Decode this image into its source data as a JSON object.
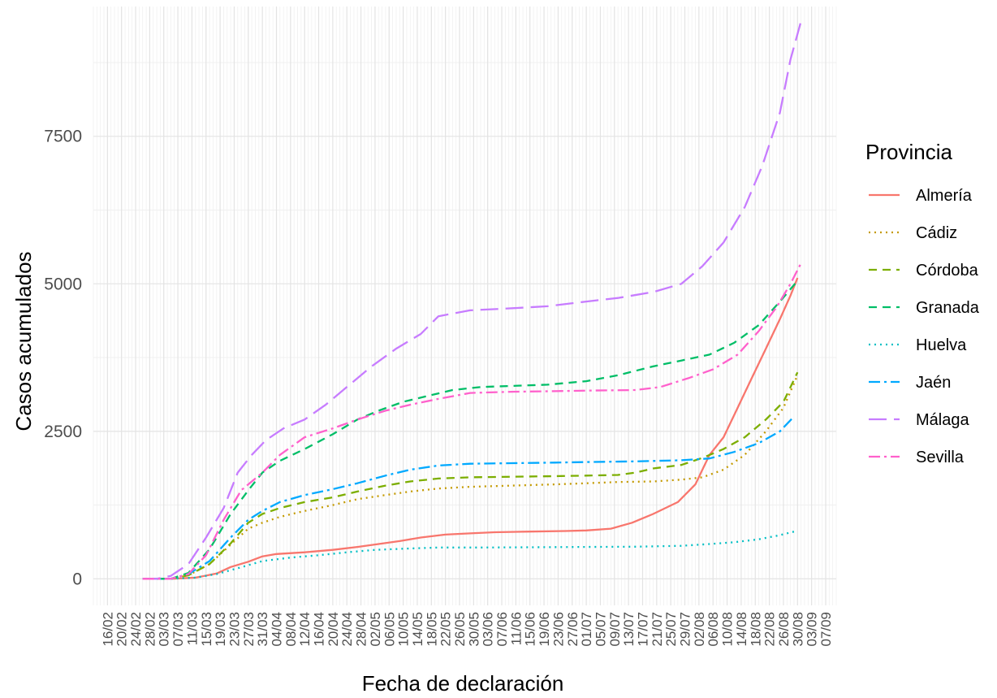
{
  "chart_data": {
    "type": "line",
    "xlabel": "Fecha de declaración",
    "ylabel": "Casos acumulados",
    "legend_title": "Provincia",
    "legend_position": "right",
    "grid": true,
    "x_start_date": "2020-02-16",
    "x_tick_labels": [
      "16/02",
      "20/02",
      "24/02",
      "28/02",
      "03/03",
      "07/03",
      "11/03",
      "15/03",
      "19/03",
      "23/03",
      "27/03",
      "31/03",
      "04/04",
      "08/04",
      "12/04",
      "16/04",
      "20/04",
      "24/04",
      "28/04",
      "02/05",
      "06/05",
      "10/05",
      "14/05",
      "18/05",
      "22/05",
      "26/05",
      "30/05",
      "03/06",
      "07/06",
      "11/06",
      "15/06",
      "19/06",
      "23/06",
      "27/06",
      "01/07",
      "05/07",
      "09/07",
      "13/07",
      "17/07",
      "21/07",
      "25/07",
      "29/07",
      "02/08",
      "06/08",
      "10/08",
      "14/08",
      "18/08",
      "22/08",
      "26/08",
      "30/08",
      "03/09",
      "07/09"
    ],
    "x_range": [
      "2020-02-12",
      "2020-09-10"
    ],
    "y_ticks": [
      0,
      2500,
      5000,
      7500
    ],
    "y_tick_labels": [
      "0",
      "2500",
      "5000",
      "7500"
    ],
    "ylim": [
      -450,
      9700
    ],
    "series": [
      {
        "name": "Almería",
        "color": "#F8766D",
        "dash": "solid",
        "points": [
          [
            "2020-02-26",
            0
          ],
          [
            "2020-03-05",
            0
          ],
          [
            "2020-03-12",
            20
          ],
          [
            "2020-03-18",
            90
          ],
          [
            "2020-03-22",
            200
          ],
          [
            "2020-03-27",
            290
          ],
          [
            "2020-03-31",
            380
          ],
          [
            "2020-04-04",
            420
          ],
          [
            "2020-04-12",
            450
          ],
          [
            "2020-04-20",
            490
          ],
          [
            "2020-04-27",
            540
          ],
          [
            "2020-05-03",
            590
          ],
          [
            "2020-05-09",
            640
          ],
          [
            "2020-05-15",
            700
          ],
          [
            "2020-05-22",
            750
          ],
          [
            "2020-05-29",
            770
          ],
          [
            "2020-06-05",
            790
          ],
          [
            "2020-06-15",
            800
          ],
          [
            "2020-06-25",
            810
          ],
          [
            "2020-07-01",
            820
          ],
          [
            "2020-07-08",
            850
          ],
          [
            "2020-07-14",
            950
          ],
          [
            "2020-07-20",
            1100
          ],
          [
            "2020-07-27",
            1300
          ],
          [
            "2020-08-01",
            1600
          ],
          [
            "2020-08-05",
            2100
          ],
          [
            "2020-08-09",
            2400
          ],
          [
            "2020-08-13",
            2900
          ],
          [
            "2020-08-17",
            3400
          ],
          [
            "2020-08-21",
            3900
          ],
          [
            "2020-08-25",
            4400
          ],
          [
            "2020-08-28",
            4800
          ],
          [
            "2020-08-30",
            5100
          ]
        ]
      },
      {
        "name": "Cádiz",
        "color": "#C49A00",
        "dash": "dotted",
        "points": [
          [
            "2020-02-26",
            0
          ],
          [
            "2020-03-05",
            0
          ],
          [
            "2020-03-10",
            60
          ],
          [
            "2020-03-16",
            250
          ],
          [
            "2020-03-22",
            580
          ],
          [
            "2020-03-27",
            850
          ],
          [
            "2020-03-31",
            950
          ],
          [
            "2020-04-05",
            1050
          ],
          [
            "2020-04-12",
            1150
          ],
          [
            "2020-04-20",
            1250
          ],
          [
            "2020-04-27",
            1350
          ],
          [
            "2020-05-05",
            1420
          ],
          [
            "2020-05-12",
            1480
          ],
          [
            "2020-05-20",
            1530
          ],
          [
            "2020-05-29",
            1560
          ],
          [
            "2020-06-10",
            1580
          ],
          [
            "2020-06-22",
            1600
          ],
          [
            "2020-07-01",
            1620
          ],
          [
            "2020-07-10",
            1640
          ],
          [
            "2020-07-20",
            1650
          ],
          [
            "2020-07-28",
            1680
          ],
          [
            "2020-08-03",
            1720
          ],
          [
            "2020-08-09",
            1850
          ],
          [
            "2020-08-15",
            2100
          ],
          [
            "2020-08-21",
            2500
          ],
          [
            "2020-08-26",
            2900
          ],
          [
            "2020-08-30",
            3450
          ]
        ]
      },
      {
        "name": "Córdoba",
        "color": "#7CAE00",
        "dash": "dashed",
        "points": [
          [
            "2020-02-26",
            0
          ],
          [
            "2020-03-05",
            0
          ],
          [
            "2020-03-10",
            60
          ],
          [
            "2020-03-16",
            250
          ],
          [
            "2020-03-22",
            600
          ],
          [
            "2020-03-27",
            950
          ],
          [
            "2020-03-31",
            1100
          ],
          [
            "2020-04-05",
            1200
          ],
          [
            "2020-04-12",
            1300
          ],
          [
            "2020-04-20",
            1380
          ],
          [
            "2020-04-27",
            1480
          ],
          [
            "2020-05-05",
            1580
          ],
          [
            "2020-05-12",
            1650
          ],
          [
            "2020-05-20",
            1700
          ],
          [
            "2020-05-29",
            1720
          ],
          [
            "2020-06-10",
            1730
          ],
          [
            "2020-06-22",
            1740
          ],
          [
            "2020-07-01",
            1750
          ],
          [
            "2020-07-10",
            1760
          ],
          [
            "2020-07-15",
            1800
          ],
          [
            "2020-07-20",
            1870
          ],
          [
            "2020-07-28",
            1930
          ],
          [
            "2020-08-03",
            2050
          ],
          [
            "2020-08-09",
            2200
          ],
          [
            "2020-08-15",
            2400
          ],
          [
            "2020-08-21",
            2700
          ],
          [
            "2020-08-26",
            3000
          ],
          [
            "2020-08-30",
            3500
          ]
        ]
      },
      {
        "name": "Granada",
        "color": "#00BE67",
        "dash": "dashed",
        "points": [
          [
            "2020-02-26",
            0
          ],
          [
            "2020-03-05",
            0
          ],
          [
            "2020-03-10",
            100
          ],
          [
            "2020-03-16",
            500
          ],
          [
            "2020-03-22",
            1100
          ],
          [
            "2020-03-27",
            1500
          ],
          [
            "2020-03-31",
            1800
          ],
          [
            "2020-04-05",
            2000
          ],
          [
            "2020-04-12",
            2200
          ],
          [
            "2020-04-20",
            2450
          ],
          [
            "2020-04-27",
            2700
          ],
          [
            "2020-05-03",
            2850
          ],
          [
            "2020-05-10",
            3000
          ],
          [
            "2020-05-17",
            3100
          ],
          [
            "2020-05-24",
            3200
          ],
          [
            "2020-06-01",
            3250
          ],
          [
            "2020-06-10",
            3270
          ],
          [
            "2020-06-20",
            3290
          ],
          [
            "2020-07-01",
            3350
          ],
          [
            "2020-07-10",
            3450
          ],
          [
            "2020-07-20",
            3600
          ],
          [
            "2020-07-28",
            3700
          ],
          [
            "2020-08-05",
            3800
          ],
          [
            "2020-08-12",
            4000
          ],
          [
            "2020-08-19",
            4300
          ],
          [
            "2020-08-25",
            4700
          ],
          [
            "2020-08-30",
            5050
          ]
        ]
      },
      {
        "name": "Huelva",
        "color": "#00BFC4",
        "dash": "dotted",
        "points": [
          [
            "2020-02-26",
            0
          ],
          [
            "2020-03-05",
            0
          ],
          [
            "2020-03-12",
            20
          ],
          [
            "2020-03-18",
            80
          ],
          [
            "2020-03-24",
            180
          ],
          [
            "2020-03-31",
            300
          ],
          [
            "2020-04-08",
            360
          ],
          [
            "2020-04-16",
            400
          ],
          [
            "2020-04-24",
            450
          ],
          [
            "2020-05-02",
            490
          ],
          [
            "2020-05-10",
            510
          ],
          [
            "2020-05-20",
            530
          ],
          [
            "2020-06-01",
            530
          ],
          [
            "2020-06-15",
            535
          ],
          [
            "2020-07-01",
            540
          ],
          [
            "2020-07-15",
            545
          ],
          [
            "2020-07-28",
            560
          ],
          [
            "2020-08-05",
            590
          ],
          [
            "2020-08-12",
            620
          ],
          [
            "2020-08-19",
            670
          ],
          [
            "2020-08-25",
            740
          ],
          [
            "2020-08-29",
            800
          ]
        ]
      },
      {
        "name": "Jaén",
        "color": "#00A9FF",
        "dash": "dashdot",
        "points": [
          [
            "2020-02-26",
            0
          ],
          [
            "2020-03-05",
            0
          ],
          [
            "2020-03-10",
            80
          ],
          [
            "2020-03-16",
            300
          ],
          [
            "2020-03-22",
            700
          ],
          [
            "2020-03-27",
            1000
          ],
          [
            "2020-03-31",
            1150
          ],
          [
            "2020-04-05",
            1300
          ],
          [
            "2020-04-12",
            1420
          ],
          [
            "2020-04-20",
            1520
          ],
          [
            "2020-04-27",
            1620
          ],
          [
            "2020-05-05",
            1750
          ],
          [
            "2020-05-12",
            1850
          ],
          [
            "2020-05-20",
            1920
          ],
          [
            "2020-05-29",
            1950
          ],
          [
            "2020-06-10",
            1960
          ],
          [
            "2020-06-22",
            1970
          ],
          [
            "2020-07-01",
            1980
          ],
          [
            "2020-07-15",
            1990
          ],
          [
            "2020-07-28",
            2010
          ],
          [
            "2020-08-05",
            2040
          ],
          [
            "2020-08-12",
            2150
          ],
          [
            "2020-08-19",
            2300
          ],
          [
            "2020-08-25",
            2500
          ],
          [
            "2020-08-29",
            2750
          ]
        ]
      },
      {
        "name": "Málaga",
        "color": "#C77CFF",
        "dash": "longdash",
        "points": [
          [
            "2020-02-26",
            0
          ],
          [
            "2020-03-01",
            0
          ],
          [
            "2020-03-05",
            50
          ],
          [
            "2020-03-10",
            250
          ],
          [
            "2020-03-15",
            700
          ],
          [
            "2020-03-20",
            1200
          ],
          [
            "2020-03-24",
            1800
          ],
          [
            "2020-03-28",
            2100
          ],
          [
            "2020-04-01",
            2350
          ],
          [
            "2020-04-06",
            2550
          ],
          [
            "2020-04-12",
            2700
          ],
          [
            "2020-04-18",
            2950
          ],
          [
            "2020-04-24",
            3250
          ],
          [
            "2020-05-01",
            3600
          ],
          [
            "2020-05-08",
            3900
          ],
          [
            "2020-05-15",
            4150
          ],
          [
            "2020-05-20",
            4450
          ],
          [
            "2020-05-29",
            4550
          ],
          [
            "2020-06-08",
            4580
          ],
          [
            "2020-06-20",
            4620
          ],
          [
            "2020-07-01",
            4700
          ],
          [
            "2020-07-10",
            4760
          ],
          [
            "2020-07-20",
            4860
          ],
          [
            "2020-07-28",
            5000
          ],
          [
            "2020-08-03",
            5300
          ],
          [
            "2020-08-09",
            5700
          ],
          [
            "2020-08-15",
            6300
          ],
          [
            "2020-08-20",
            7000
          ],
          [
            "2020-08-25",
            7900
          ],
          [
            "2020-08-28",
            8800
          ],
          [
            "2020-08-31",
            9450
          ]
        ]
      },
      {
        "name": "Sevilla",
        "color": "#FF61CC",
        "dash": "dashdot",
        "points": [
          [
            "2020-02-26",
            0
          ],
          [
            "2020-03-05",
            0
          ],
          [
            "2020-03-10",
            80
          ],
          [
            "2020-03-15",
            400
          ],
          [
            "2020-03-20",
            1000
          ],
          [
            "2020-03-25",
            1500
          ],
          [
            "2020-03-31",
            1800
          ],
          [
            "2020-04-05",
            2100
          ],
          [
            "2020-04-12",
            2400
          ],
          [
            "2020-04-20",
            2550
          ],
          [
            "2020-04-27",
            2700
          ],
          [
            "2020-05-05",
            2850
          ],
          [
            "2020-05-12",
            2950
          ],
          [
            "2020-05-20",
            3050
          ],
          [
            "2020-05-29",
            3150
          ],
          [
            "2020-06-10",
            3170
          ],
          [
            "2020-06-22",
            3180
          ],
          [
            "2020-07-01",
            3190
          ],
          [
            "2020-07-15",
            3200
          ],
          [
            "2020-07-22",
            3250
          ],
          [
            "2020-07-30",
            3400
          ],
          [
            "2020-08-06",
            3550
          ],
          [
            "2020-08-13",
            3800
          ],
          [
            "2020-08-19",
            4200
          ],
          [
            "2020-08-24",
            4600
          ],
          [
            "2020-08-28",
            5000
          ],
          [
            "2020-08-31",
            5350
          ]
        ]
      }
    ]
  }
}
